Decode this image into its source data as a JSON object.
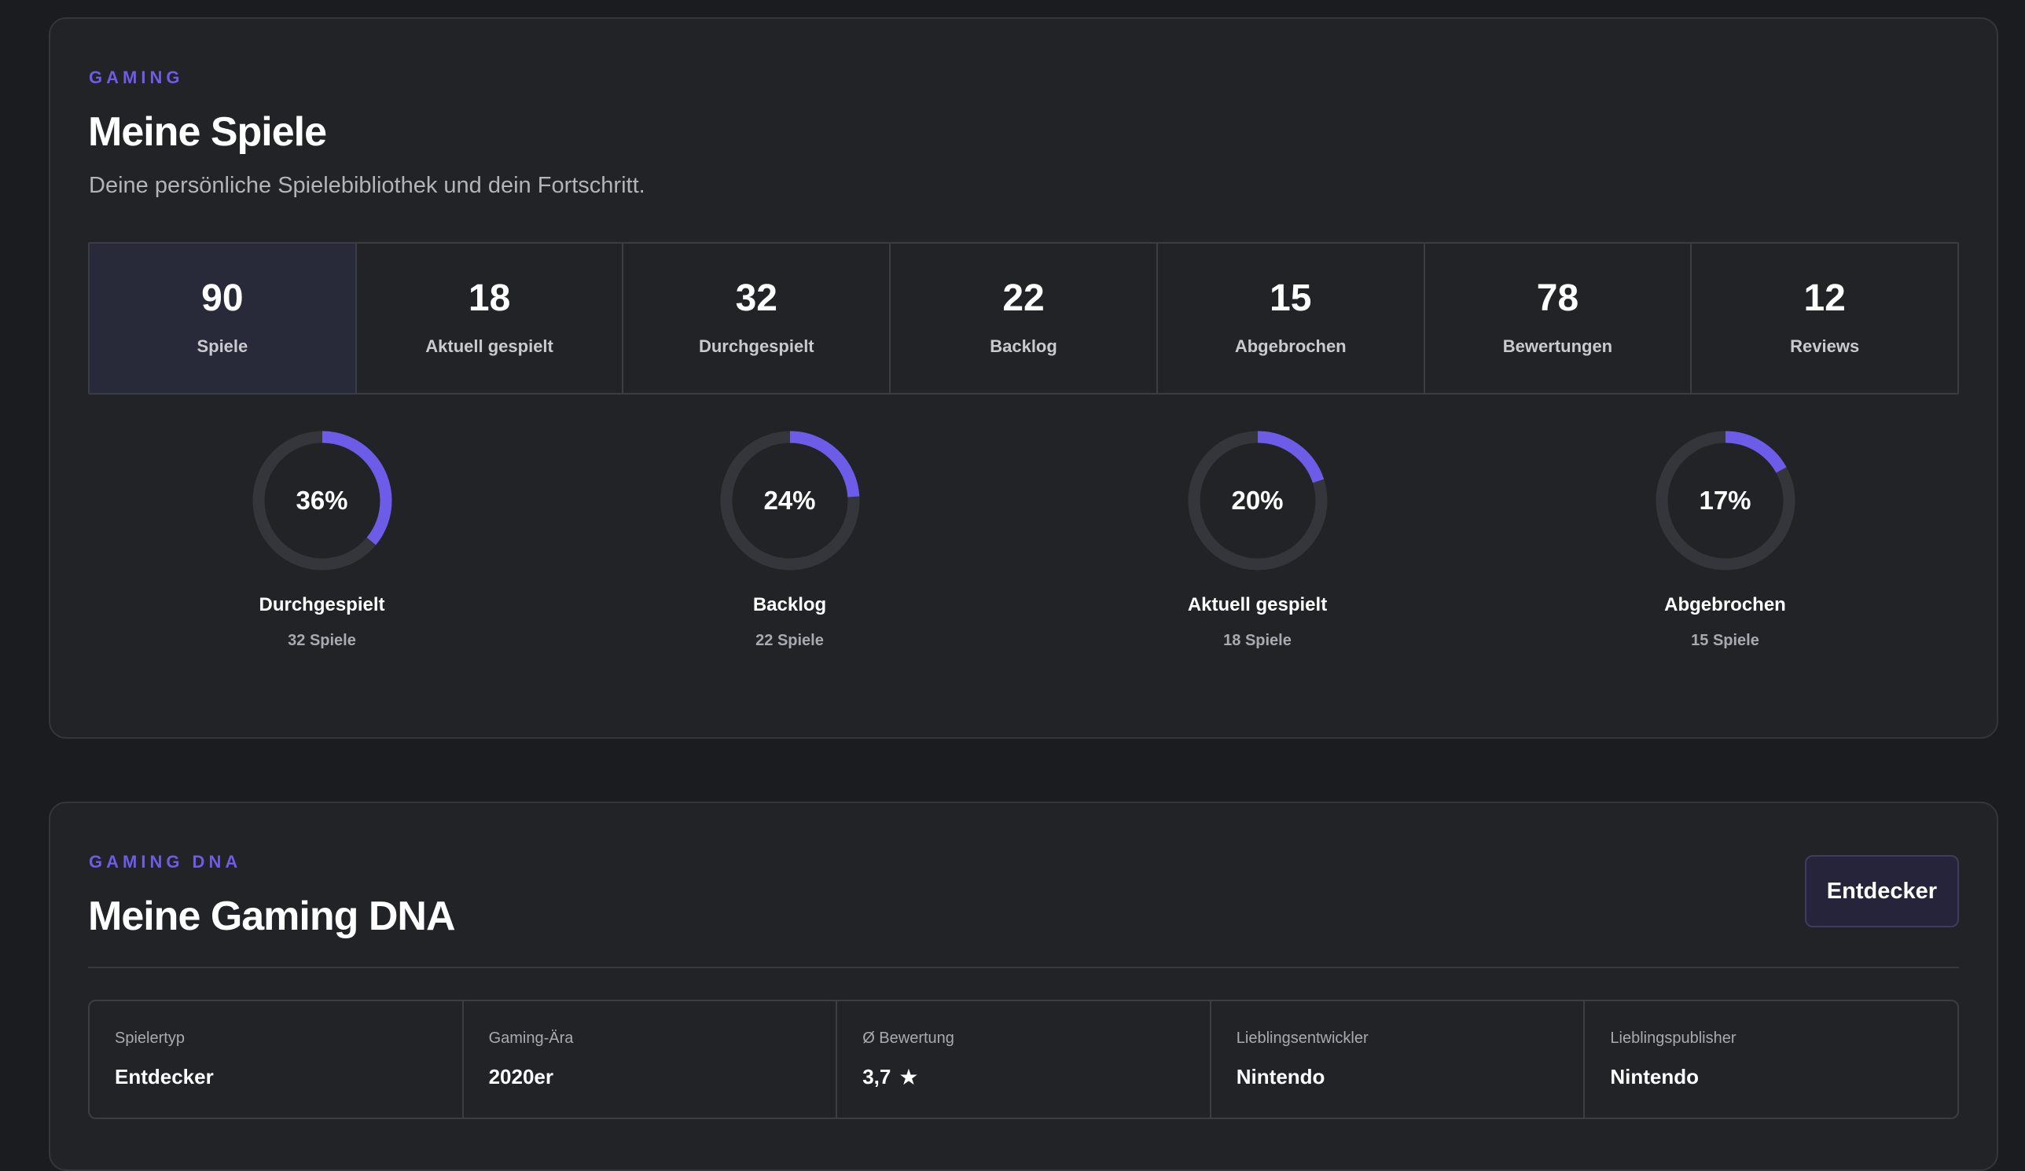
{
  "library": {
    "eyebrow": "GAMING",
    "title": "Meine Spiele",
    "subtitle": "Deine persönliche Spielebibliothek und dein Fortschritt.",
    "stats": [
      {
        "value": "90",
        "label": "Spiele"
      },
      {
        "value": "18",
        "label": "Aktuell gespielt"
      },
      {
        "value": "32",
        "label": "Durchgespielt"
      },
      {
        "value": "22",
        "label": "Backlog"
      },
      {
        "value": "15",
        "label": "Abgebrochen"
      },
      {
        "value": "78",
        "label": "Bewertungen"
      },
      {
        "value": "12",
        "label": "Reviews"
      }
    ],
    "progress": [
      {
        "percent": 36,
        "percent_label": "36%",
        "label": "Durchgespielt",
        "sub": "32 Spiele"
      },
      {
        "percent": 24,
        "percent_label": "24%",
        "label": "Backlog",
        "sub": "22 Spiele"
      },
      {
        "percent": 20,
        "percent_label": "20%",
        "label": "Aktuell gespielt",
        "sub": "18 Spiele"
      },
      {
        "percent": 17,
        "percent_label": "17%",
        "label": "Abgebrochen",
        "sub": "15 Spiele"
      }
    ]
  },
  "dna": {
    "eyebrow": "GAMING DNA",
    "title": "Meine Gaming DNA",
    "badge": "Entdecker",
    "items": [
      {
        "label": "Spielertyp",
        "value": "Entdecker"
      },
      {
        "label": "Gaming-Ära",
        "value": "2020er"
      },
      {
        "label": "Ø Bewertung",
        "value": "3,7",
        "icon": "star-icon"
      },
      {
        "label": "Lieblingsentwickler",
        "value": "Nintendo"
      },
      {
        "label": "Lieblingspublisher",
        "value": "Nintendo"
      }
    ]
  },
  "colors": {
    "accent": "#6c5ce7",
    "track": "#35363b",
    "background": "#1b1c20",
    "card": "#222327"
  }
}
